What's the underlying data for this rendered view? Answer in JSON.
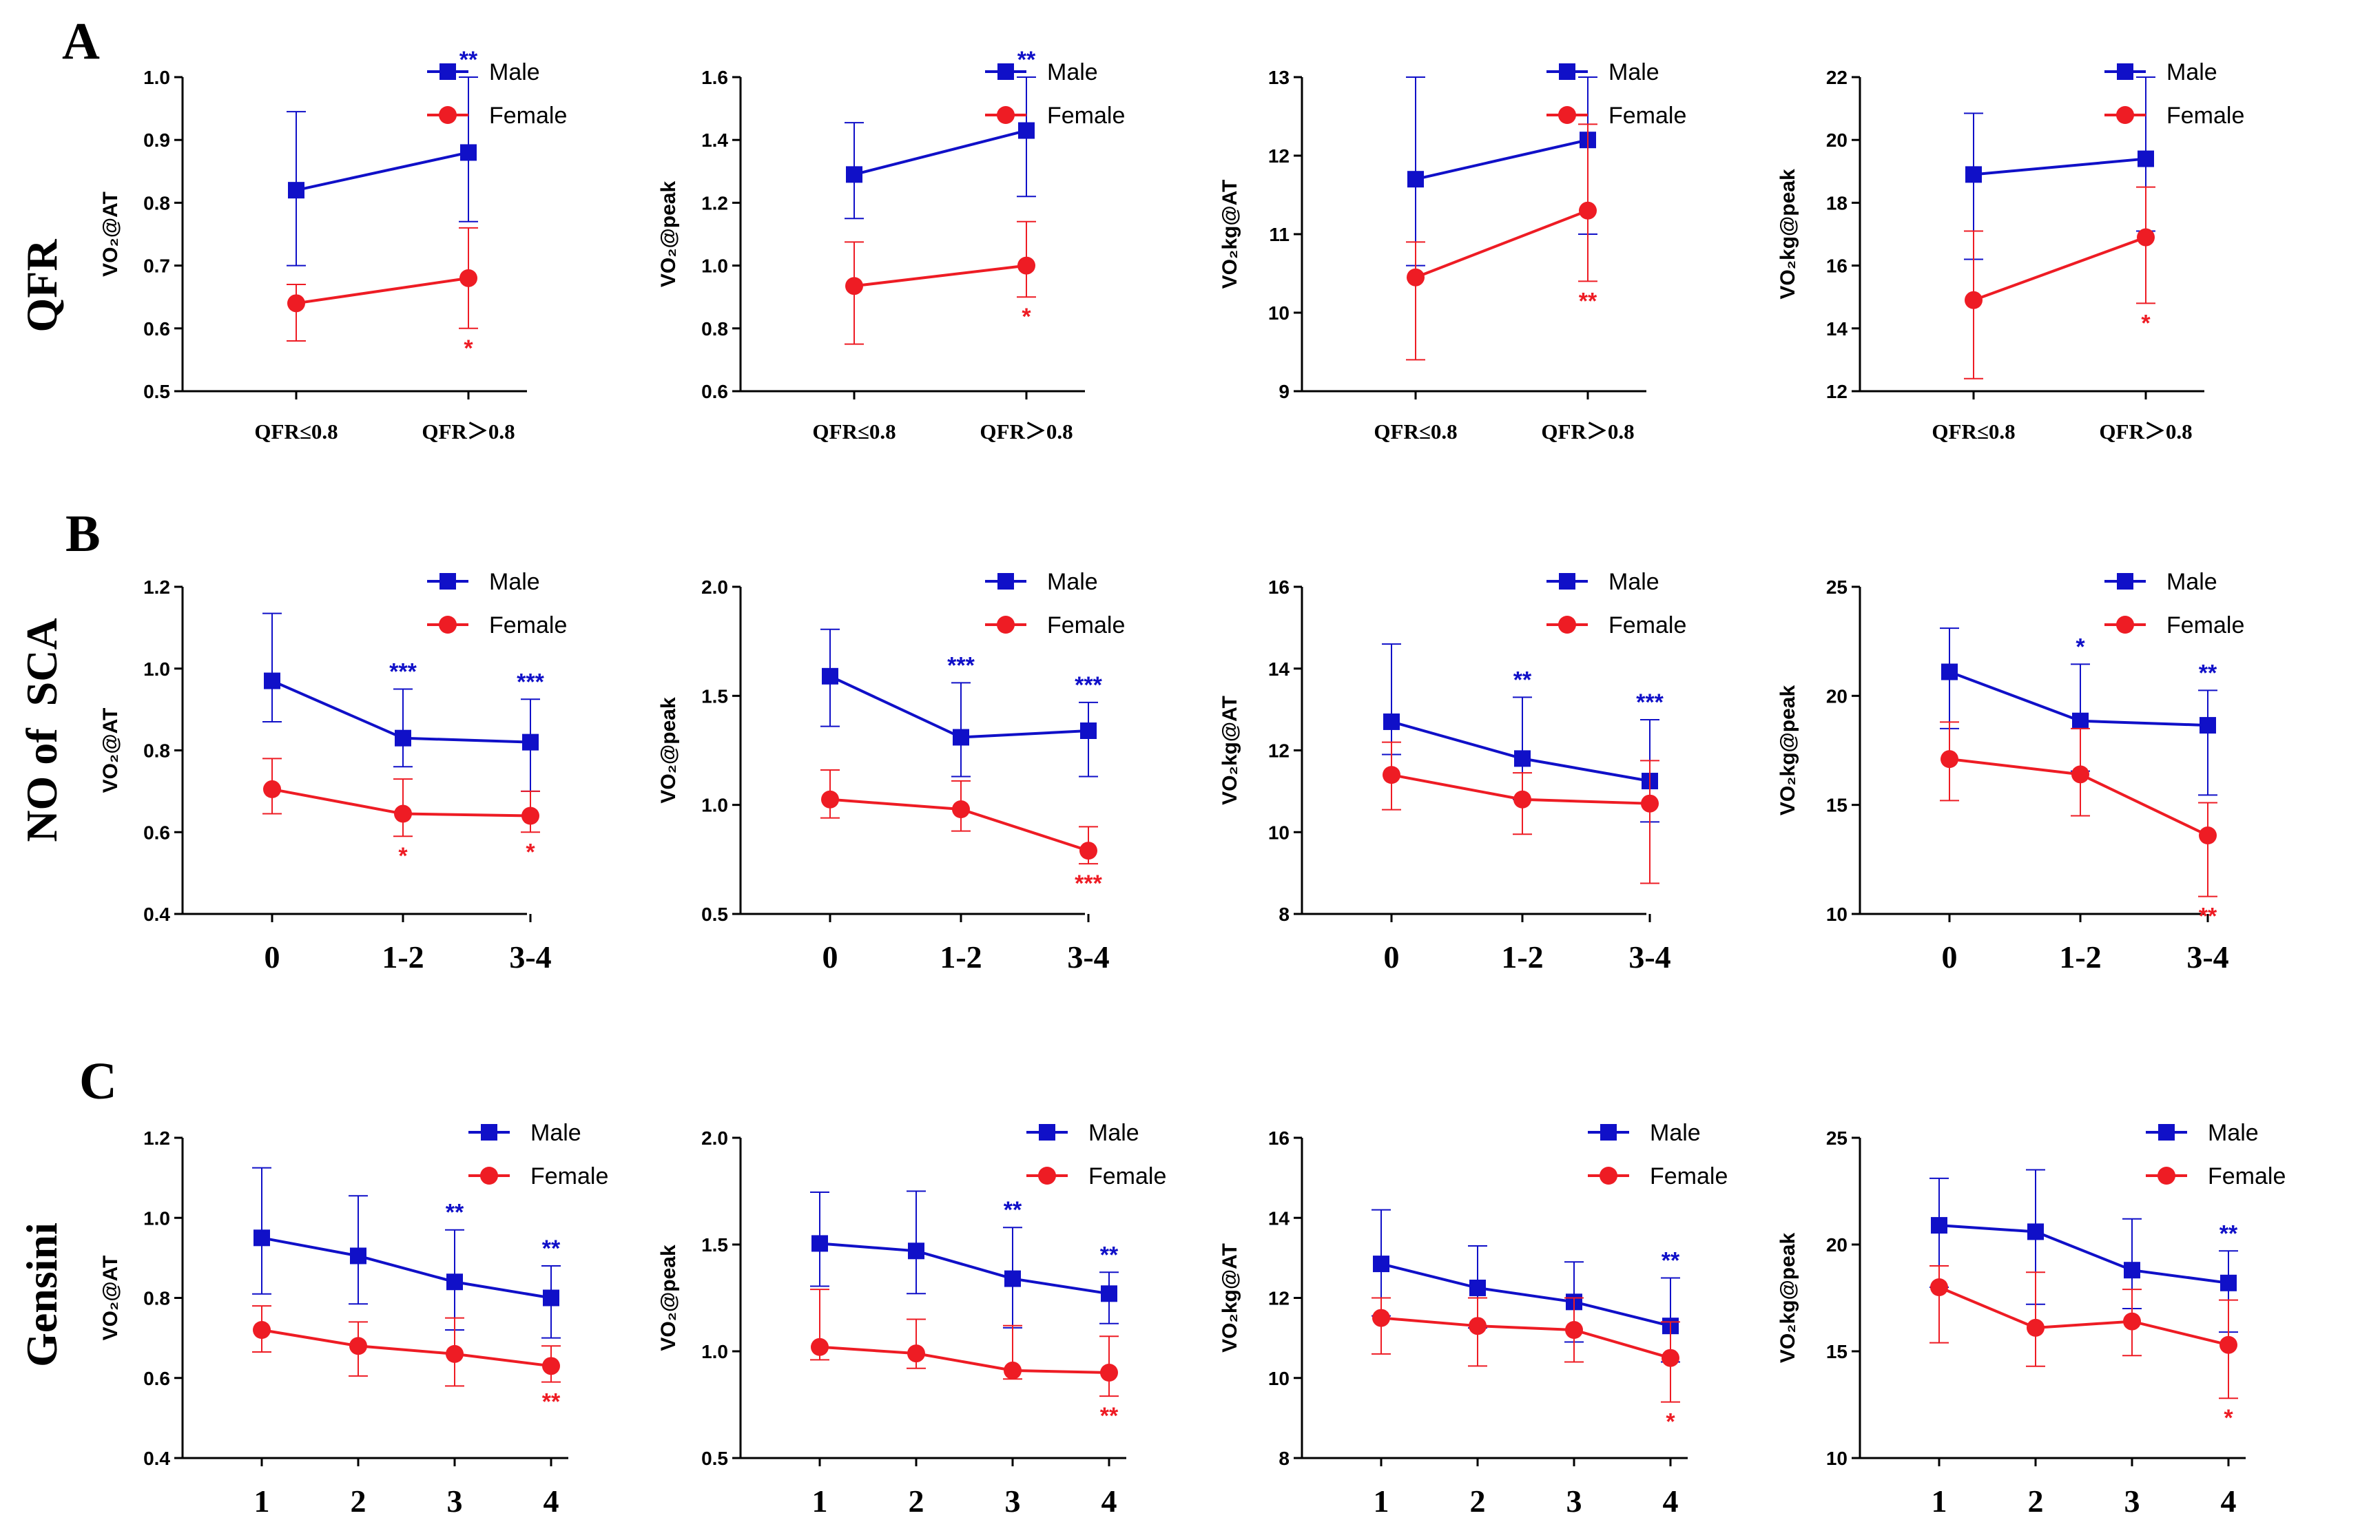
{
  "figure": {
    "sections": [
      {
        "label": "A",
        "row_label": "QFR"
      },
      {
        "label": "B",
        "row_label": "NO of  SCA"
      },
      {
        "label": "C",
        "row_label": "Gensini"
      }
    ]
  },
  "colors": {
    "male": "#1010c8",
    "female": "#ee1c24",
    "axis": "#000000"
  },
  "chart_data": [
    {
      "type": "line",
      "id": "A1",
      "title": "",
      "xlabel": "",
      "ylabel": "VO₂@AT",
      "categories": [
        "QFR≤0.8",
        "QFR＞0.8"
      ],
      "ylim": [
        0.5,
        1.0
      ],
      "yticks": [
        0.5,
        0.6,
        0.7,
        0.8,
        0.9,
        1.0
      ],
      "ytick_labels": [
        "0.5",
        "0.6",
        "0.7",
        "0.8",
        "0.9",
        "1.0"
      ],
      "series": [
        {
          "name": "Male",
          "values": [
            0.82,
            0.88
          ],
          "err_up": [
            0.125,
            0.12
          ],
          "err_down": [
            0.12,
            0.11
          ],
          "sig": [
            "",
            "**"
          ]
        },
        {
          "name": "Female",
          "values": [
            0.64,
            0.68
          ],
          "err_up": [
            0.03,
            0.08
          ],
          "err_down": [
            0.06,
            0.08
          ],
          "sig": [
            "",
            "*"
          ]
        }
      ],
      "legend": [
        "Male",
        "Female"
      ]
    },
    {
      "type": "line",
      "id": "A2",
      "title": "",
      "xlabel": "",
      "ylabel": "VO₂@peak",
      "categories": [
        "QFR≤0.8",
        "QFR＞0.8"
      ],
      "ylim": [
        0.6,
        1.6
      ],
      "yticks": [
        0.6,
        0.8,
        1.0,
        1.2,
        1.4,
        1.6
      ],
      "ytick_labels": [
        "0.6",
        "0.8",
        "1.0",
        "1.2",
        "1.4",
        "1.6"
      ],
      "series": [
        {
          "name": "Male",
          "values": [
            1.29,
            1.43
          ],
          "err_up": [
            0.165,
            0.17
          ],
          "err_down": [
            0.14,
            0.21
          ],
          "sig": [
            "",
            "**"
          ]
        },
        {
          "name": "Female",
          "values": [
            0.935,
            1.0
          ],
          "err_up": [
            0.14,
            0.14
          ],
          "err_down": [
            0.185,
            0.1
          ],
          "sig": [
            "",
            "*"
          ]
        }
      ],
      "legend": [
        "Male",
        "Female"
      ]
    },
    {
      "type": "line",
      "id": "A3",
      "title": "",
      "xlabel": "",
      "ylabel": "VO₂kg@AT",
      "categories": [
        "QFR≤0.8",
        "QFR＞0.8"
      ],
      "ylim": [
        9,
        13
      ],
      "yticks": [
        9,
        10,
        11,
        12,
        13
      ],
      "ytick_labels": [
        "9",
        "10",
        "11",
        "12",
        "13"
      ],
      "series": [
        {
          "name": "Male",
          "values": [
            11.7,
            12.2
          ],
          "err_up": [
            1.3,
            0.8
          ],
          "err_down": [
            1.1,
            1.2
          ],
          "sig": [
            "",
            ""
          ]
        },
        {
          "name": "Female",
          "values": [
            10.45,
            11.3
          ],
          "err_up": [
            0.45,
            1.1
          ],
          "err_down": [
            1.05,
            0.9
          ],
          "sig": [
            "",
            "**"
          ]
        }
      ],
      "legend": [
        "Male",
        "Female"
      ]
    },
    {
      "type": "line",
      "id": "A4",
      "title": "",
      "xlabel": "",
      "ylabel": "VO₂kg@peak",
      "categories": [
        "QFR≤0.8",
        "QFR＞0.8"
      ],
      "ylim": [
        12,
        22
      ],
      "yticks": [
        12,
        14,
        16,
        18,
        20,
        22
      ],
      "ytick_labels": [
        "12",
        "14",
        "16",
        "18",
        "20",
        "22"
      ],
      "series": [
        {
          "name": "Male",
          "values": [
            18.9,
            19.4
          ],
          "err_up": [
            1.95,
            2.6
          ],
          "err_down": [
            2.7,
            2.3
          ],
          "sig": [
            "",
            ""
          ]
        },
        {
          "name": "Female",
          "values": [
            14.9,
            16.9
          ],
          "err_up": [
            2.2,
            1.6
          ],
          "err_down": [
            2.5,
            2.1
          ],
          "sig": [
            "",
            "*"
          ]
        }
      ],
      "legend": [
        "Male",
        "Female"
      ]
    },
    {
      "type": "line",
      "id": "B1",
      "title": "",
      "xlabel": "",
      "ylabel": "VO₂@AT",
      "categories": [
        "0",
        "1-2",
        "3-4"
      ],
      "ylim": [
        0.4,
        1.2
      ],
      "yticks": [
        0.4,
        0.6,
        0.8,
        1.0,
        1.2
      ],
      "ytick_labels": [
        "0.4",
        "0.6",
        "0.8",
        "1.0",
        "1.2"
      ],
      "series": [
        {
          "name": "Male",
          "values": [
            0.97,
            0.83,
            0.82
          ],
          "err_up": [
            0.165,
            0.12,
            0.105
          ],
          "err_down": [
            0.1,
            0.07,
            0.12
          ],
          "sig": [
            "",
            "***",
            "***"
          ]
        },
        {
          "name": "Female",
          "values": [
            0.705,
            0.645,
            0.64
          ],
          "err_up": [
            0.075,
            0.085,
            0.06
          ],
          "err_down": [
            0.06,
            0.055,
            0.04
          ],
          "sig": [
            "",
            "*",
            "*"
          ]
        }
      ],
      "legend": [
        "Male",
        "Female"
      ]
    },
    {
      "type": "line",
      "id": "B2",
      "title": "",
      "xlabel": "",
      "ylabel": "VO₂@peak",
      "categories": [
        "0",
        "1-2",
        "3-4"
      ],
      "ylim": [
        0.5,
        2.0
      ],
      "yticks": [
        0.5,
        1.0,
        1.5,
        2.0
      ],
      "ytick_labels": [
        "0.5",
        "1.0",
        "1.5",
        "2.0"
      ],
      "series": [
        {
          "name": "Male",
          "values": [
            1.59,
            1.31,
            1.34
          ],
          "err_up": [
            0.215,
            0.25,
            0.13
          ],
          "err_down": [
            0.23,
            0.18,
            0.21
          ],
          "sig": [
            "",
            "***",
            "***"
          ]
        },
        {
          "name": "Female",
          "values": [
            1.025,
            0.98,
            0.79
          ],
          "err_up": [
            0.135,
            0.13,
            0.11
          ],
          "err_down": [
            0.085,
            0.1,
            0.06
          ],
          "sig": [
            "",
            "",
            "***"
          ]
        }
      ],
      "legend": [
        "Male",
        "Female"
      ]
    },
    {
      "type": "line",
      "id": "B3",
      "title": "",
      "xlabel": "",
      "ylabel": "VO₂kg@AT",
      "categories": [
        "0",
        "1-2",
        "3-4"
      ],
      "ylim": [
        8,
        16
      ],
      "yticks": [
        8,
        10,
        12,
        14,
        16
      ],
      "ytick_labels": [
        "8",
        "10",
        "12",
        "14",
        "16"
      ],
      "series": [
        {
          "name": "Male",
          "values": [
            12.7,
            11.8,
            11.25
          ],
          "err_up": [
            1.9,
            1.5,
            1.5
          ],
          "err_down": [
            0.8,
            1.0,
            1.0
          ],
          "sig": [
            "",
            "**",
            "***"
          ]
        },
        {
          "name": "Female",
          "values": [
            11.4,
            10.8,
            10.7
          ],
          "err_up": [
            0.8,
            0.65,
            1.05
          ],
          "err_down": [
            0.85,
            0.85,
            1.95
          ],
          "sig": [
            "",
            "",
            ""
          ]
        }
      ],
      "legend": [
        "Male",
        "Female"
      ]
    },
    {
      "type": "line",
      "id": "B4",
      "title": "",
      "xlabel": "",
      "ylabel": "VO₂kg@peak",
      "categories": [
        "0",
        "1-2",
        "3-4"
      ],
      "ylim": [
        10,
        25
      ],
      "yticks": [
        10,
        15,
        20,
        25
      ],
      "ytick_labels": [
        "10",
        "15",
        "20",
        "25"
      ],
      "series": [
        {
          "name": "Male",
          "values": [
            21.1,
            18.85,
            18.65
          ],
          "err_up": [
            2.0,
            2.6,
            1.6
          ],
          "err_down": [
            2.6,
            2.3,
            3.2
          ],
          "sig": [
            "",
            "*",
            "**"
          ]
        },
        {
          "name": "Female",
          "values": [
            17.1,
            16.4,
            13.6
          ],
          "err_up": [
            1.7,
            2.1,
            1.5
          ],
          "err_down": [
            1.9,
            1.9,
            2.8
          ],
          "sig": [
            "",
            "",
            "**"
          ]
        }
      ],
      "legend": [
        "Male",
        "Female"
      ]
    },
    {
      "type": "line",
      "id": "C1",
      "title": "",
      "xlabel": "",
      "ylabel": "VO₂@AT",
      "categories": [
        "1",
        "2",
        "3",
        "4"
      ],
      "ylim": [
        0.4,
        1.2
      ],
      "yticks": [
        0.4,
        0.6,
        0.8,
        1.0,
        1.2
      ],
      "ytick_labels": [
        "0.4",
        "0.6",
        "0.8",
        "1.0",
        "1.2"
      ],
      "series": [
        {
          "name": "Male",
          "values": [
            0.95,
            0.905,
            0.84,
            0.8
          ],
          "err_up": [
            0.175,
            0.15,
            0.13,
            0.08
          ],
          "err_down": [
            0.14,
            0.12,
            0.12,
            0.1
          ],
          "sig": [
            "",
            "",
            "**",
            "**"
          ]
        },
        {
          "name": "Female",
          "values": [
            0.72,
            0.68,
            0.66,
            0.63
          ],
          "err_up": [
            0.06,
            0.06,
            0.09,
            0.05
          ],
          "err_down": [
            0.055,
            0.075,
            0.08,
            0.04
          ],
          "sig": [
            "",
            "",
            "",
            "**"
          ]
        }
      ],
      "legend": [
        "Male",
        "Female"
      ]
    },
    {
      "type": "line",
      "id": "C2",
      "title": "",
      "xlabel": "",
      "ylabel": "VO₂@peak",
      "categories": [
        "1",
        "2",
        "3",
        "4"
      ],
      "ylim": [
        0.5,
        2.0
      ],
      "yticks": [
        0.5,
        1.0,
        1.5,
        2.0
      ],
      "ytick_labels": [
        "0.5",
        "1.0",
        "1.5",
        "2.0"
      ],
      "series": [
        {
          "name": "Male",
          "values": [
            1.505,
            1.47,
            1.34,
            1.27
          ],
          "err_up": [
            0.24,
            0.28,
            0.24,
            0.1
          ],
          "err_down": [
            0.2,
            0.2,
            0.23,
            0.14
          ],
          "sig": [
            "",
            "",
            "**",
            "**"
          ]
        },
        {
          "name": "Female",
          "values": [
            1.02,
            0.99,
            0.91,
            0.9
          ],
          "err_up": [
            0.27,
            0.16,
            0.21,
            0.17
          ],
          "err_down": [
            0.06,
            0.07,
            0.04,
            0.11
          ],
          "sig": [
            "",
            "",
            "",
            "**"
          ]
        }
      ],
      "legend": [
        "Male",
        "Female"
      ]
    },
    {
      "type": "line",
      "id": "C3",
      "title": "",
      "xlabel": "",
      "ylabel": "VO₂kg@AT",
      "categories": [
        "1",
        "2",
        "3",
        "4"
      ],
      "ylim": [
        8,
        16
      ],
      "yticks": [
        8,
        10,
        12,
        14,
        16
      ],
      "ytick_labels": [
        "8",
        "10",
        "12",
        "14",
        "16"
      ],
      "series": [
        {
          "name": "Male",
          "values": [
            12.85,
            12.25,
            11.9,
            11.3
          ],
          "err_up": [
            1.35,
            1.05,
            1.0,
            1.2
          ],
          "err_down": [
            1.3,
            1.0,
            1.0,
            0.9
          ],
          "sig": [
            "",
            "",
            "",
            "**"
          ]
        },
        {
          "name": "Female",
          "values": [
            11.5,
            11.3,
            11.2,
            10.5
          ],
          "err_up": [
            0.5,
            0.7,
            0.8,
            0.9
          ],
          "err_down": [
            0.9,
            1.0,
            0.8,
            1.1
          ],
          "sig": [
            "",
            "",
            "",
            "*"
          ]
        }
      ],
      "legend": [
        "Male",
        "Female"
      ]
    },
    {
      "type": "line",
      "id": "C4",
      "title": "",
      "xlabel": "",
      "ylabel": "VO₂kg@peak",
      "categories": [
        "1",
        "2",
        "3",
        "4"
      ],
      "ylim": [
        10,
        25
      ],
      "yticks": [
        10,
        15,
        20,
        25
      ],
      "ytick_labels": [
        "10",
        "15",
        "20",
        "25"
      ],
      "series": [
        {
          "name": "Male",
          "values": [
            20.9,
            20.6,
            18.8,
            18.2
          ],
          "err_up": [
            2.2,
            2.9,
            2.4,
            1.5
          ],
          "err_down": [
            2.9,
            3.4,
            1.8,
            2.3
          ],
          "sig": [
            "",
            "",
            "",
            "**"
          ]
        },
        {
          "name": "Female",
          "values": [
            18.0,
            16.1,
            16.4,
            15.3
          ],
          "err_up": [
            1.0,
            2.6,
            1.5,
            2.1
          ],
          "err_down": [
            2.6,
            1.8,
            1.6,
            2.5
          ],
          "sig": [
            "",
            "",
            "",
            "*"
          ]
        }
      ],
      "legend": [
        "Male",
        "Female"
      ]
    }
  ]
}
